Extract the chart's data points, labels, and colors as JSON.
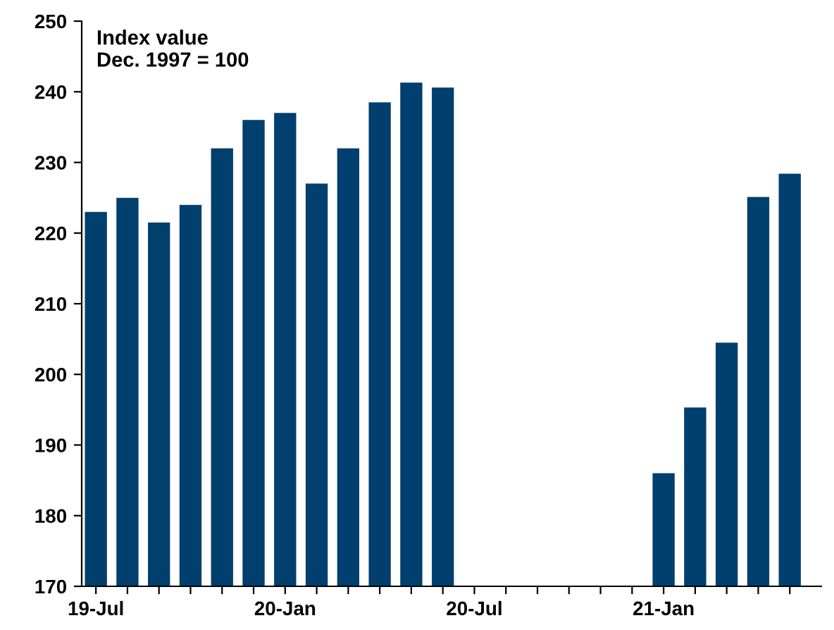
{
  "chart_data": {
    "type": "bar",
    "annotations": [
      "Index value\nDec. 1997 = 100"
    ],
    "categories": [
      "19-Jul",
      null,
      null,
      null,
      null,
      null,
      "20-Jan",
      null,
      null,
      null,
      null,
      null,
      "20-Jul",
      null,
      null,
      null,
      null,
      null,
      "21-Jan",
      null,
      null,
      null,
      null
    ],
    "values": [
      223,
      225,
      221.5,
      224,
      232,
      236,
      237,
      227,
      232,
      238.5,
      241.3,
      240.6,
      null,
      null,
      null,
      null,
      null,
      null,
      186,
      195.3,
      204.5,
      225.1,
      228.4
    ],
    "color": "#003f6e",
    "ylim": [
      170,
      250
    ],
    "yticks": [
      170,
      180,
      190,
      200,
      210,
      220,
      230,
      240,
      250
    ],
    "grid": false,
    "legend": false
  }
}
